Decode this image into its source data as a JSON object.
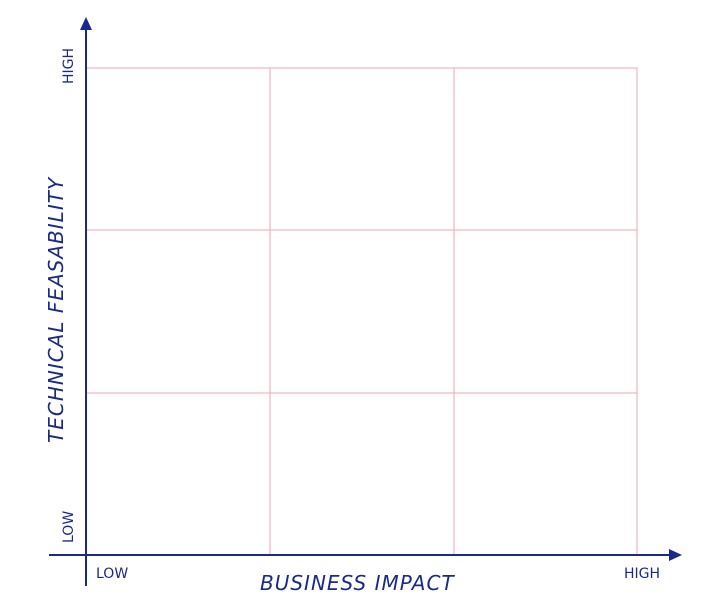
{
  "diagram": {
    "x_axis": {
      "title": "BUSINESS IMPACT",
      "low_label": "LOW",
      "high_label": "HIGH"
    },
    "y_axis": {
      "title": "TECHNICAL FEASABILITY",
      "low_label": "LOW",
      "high_label": "HIGH"
    },
    "grid": {
      "rows": 3,
      "columns": 3
    },
    "colors": {
      "axis": "#1b2a8a",
      "grid": "#f2a3b3",
      "background": "#ffffff"
    }
  }
}
